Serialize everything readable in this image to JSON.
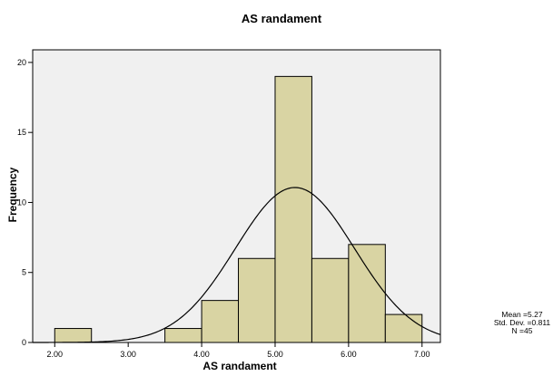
{
  "chart_data": {
    "type": "bar",
    "title": "AS randament",
    "xlabel": "AS randament",
    "ylabel": "Frequency",
    "bins": [
      {
        "start": 2.0,
        "end": 2.5,
        "count": 1
      },
      {
        "start": 2.5,
        "end": 3.0,
        "count": 0
      },
      {
        "start": 3.0,
        "end": 3.5,
        "count": 0
      },
      {
        "start": 3.5,
        "end": 4.0,
        "count": 1
      },
      {
        "start": 4.0,
        "end": 4.5,
        "count": 3
      },
      {
        "start": 4.5,
        "end": 5.0,
        "count": 6
      },
      {
        "start": 5.0,
        "end": 5.5,
        "count": 19
      },
      {
        "start": 5.5,
        "end": 6.0,
        "count": 6
      },
      {
        "start": 6.0,
        "end": 6.5,
        "count": 7
      },
      {
        "start": 6.5,
        "end": 7.0,
        "count": 2
      }
    ],
    "xticks": [
      {
        "value": 2.0,
        "label": "2.00"
      },
      {
        "value": 3.0,
        "label": "3.00"
      },
      {
        "value": 4.0,
        "label": "4.00"
      },
      {
        "value": 5.0,
        "label": "5.00"
      },
      {
        "value": 6.0,
        "label": "6.00"
      },
      {
        "value": 7.0,
        "label": "7.00"
      }
    ],
    "yticks": [
      {
        "value": 0,
        "label": "0"
      },
      {
        "value": 5,
        "label": "5"
      },
      {
        "value": 10,
        "label": "10"
      },
      {
        "value": 15,
        "label": "15"
      },
      {
        "value": 20,
        "label": "20"
      }
    ],
    "xlim": [
      1.7,
      7.25
    ],
    "ylim": [
      0,
      20.9
    ],
    "normal_curve": {
      "mean": 5.27,
      "std": 0.811,
      "n": 45,
      "bin_width": 0.5
    },
    "stats_labels": {
      "mean": "Mean =5.27",
      "std": "Std. Dev. =0.811",
      "n": "N =45"
    },
    "colors": {
      "plot_background": "#f0f0f0",
      "bar_fill": "#d9d4a3",
      "bar_stroke": "#000000",
      "curve": "#000000"
    }
  }
}
